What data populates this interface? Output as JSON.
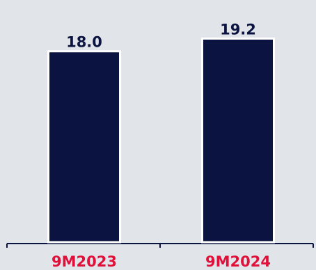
{
  "chart_data": {
    "type": "bar",
    "categories": [
      "9M2023",
      "9M2024"
    ],
    "values": [
      18.0,
      19.2
    ],
    "value_labels": [
      "18.0",
      "19.2"
    ],
    "ylim": [
      0,
      21
    ],
    "grid": false,
    "legend": "none",
    "colors": {
      "bar": "#0b1440",
      "bar_outline": "#ffffff",
      "axis": "#0b1440",
      "value_label": "#0b1440",
      "category_label": "#e0103a",
      "background": "#e1e5ea"
    }
  }
}
